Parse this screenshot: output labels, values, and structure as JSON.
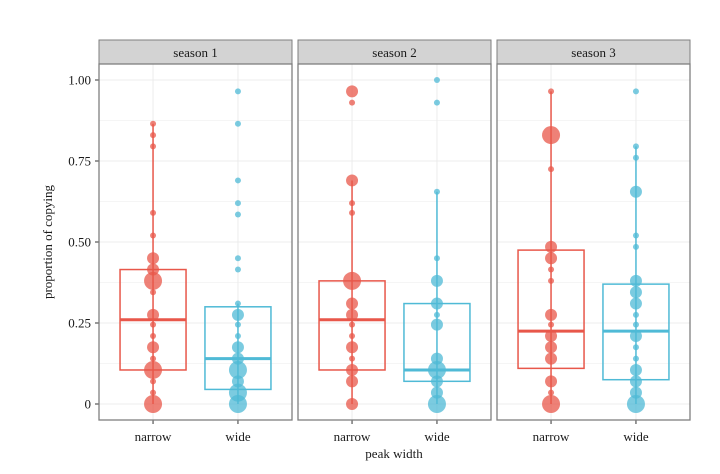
{
  "chart_data": {
    "type": "boxplot",
    "xlabel": "peak width",
    "ylabel": "proportion of copying",
    "ylim": [
      -0.05,
      1.05
    ],
    "yticks": [
      0,
      0.25,
      0.5,
      0.75,
      1.0
    ],
    "ytick_labels": [
      "0",
      "0.25",
      "0.50",
      "0.75",
      "1.00"
    ],
    "categories": [
      "narrow",
      "wide"
    ],
    "colors": {
      "narrow": "#e8574a",
      "wide": "#4fbad6"
    },
    "grid": true,
    "legend": "none",
    "panels": [
      {
        "title": "season 1",
        "groups": [
          {
            "category": "narrow",
            "box": {
              "lower_whisker": 0.0,
              "q1": 0.105,
              "median": 0.26,
              "q3": 0.415,
              "upper_whisker": 0.865
            },
            "points": [
              [
                0.0,
                3
              ],
              [
                0.035,
                1
              ],
              [
                0.07,
                1
              ],
              [
                0.105,
                3
              ],
              [
                0.14,
                1
              ],
              [
                0.175,
                2
              ],
              [
                0.21,
                1
              ],
              [
                0.245,
                1
              ],
              [
                0.275,
                2
              ],
              [
                0.345,
                1
              ],
              [
                0.38,
                3
              ],
              [
                0.415,
                2
              ],
              [
                0.45,
                2
              ],
              [
                0.52,
                1
              ],
              [
                0.59,
                1
              ],
              [
                0.795,
                1
              ],
              [
                0.83,
                1
              ],
              [
                0.865,
                1
              ]
            ]
          },
          {
            "category": "wide",
            "box": {
              "lower_whisker": 0.0,
              "q1": 0.045,
              "median": 0.14,
              "q3": 0.3,
              "upper_whisker": 0.31
            },
            "points": [
              [
                0.0,
                3
              ],
              [
                0.035,
                3
              ],
              [
                0.07,
                2
              ],
              [
                0.105,
                3
              ],
              [
                0.14,
                2
              ],
              [
                0.175,
                2
              ],
              [
                0.21,
                1
              ],
              [
                0.245,
                1
              ],
              [
                0.275,
                2
              ],
              [
                0.31,
                1
              ],
              [
                0.415,
                1
              ],
              [
                0.45,
                1
              ],
              [
                0.585,
                1
              ],
              [
                0.62,
                1
              ],
              [
                0.69,
                1
              ],
              [
                0.865,
                1
              ],
              [
                0.965,
                1
              ]
            ]
          }
        ]
      },
      {
        "title": "season 2",
        "groups": [
          {
            "category": "narrow",
            "box": {
              "lower_whisker": 0.0,
              "q1": 0.105,
              "median": 0.26,
              "q3": 0.38,
              "upper_whisker": 0.69
            },
            "points": [
              [
                0.0,
                2
              ],
              [
                0.07,
                2
              ],
              [
                0.105,
                2
              ],
              [
                0.14,
                1
              ],
              [
                0.175,
                2
              ],
              [
                0.21,
                1
              ],
              [
                0.245,
                1
              ],
              [
                0.275,
                2
              ],
              [
                0.31,
                2
              ],
              [
                0.38,
                3
              ],
              [
                0.59,
                1
              ],
              [
                0.62,
                1
              ],
              [
                0.69,
                2
              ],
              [
                0.93,
                1
              ],
              [
                0.965,
                2
              ]
            ]
          },
          {
            "category": "wide",
            "box": {
              "lower_whisker": 0.0,
              "q1": 0.07,
              "median": 0.105,
              "q3": 0.31,
              "upper_whisker": 0.655
            },
            "points": [
              [
                0.0,
                3
              ],
              [
                0.035,
                2
              ],
              [
                0.07,
                2
              ],
              [
                0.105,
                3
              ],
              [
                0.14,
                2
              ],
              [
                0.245,
                2
              ],
              [
                0.275,
                1
              ],
              [
                0.31,
                2
              ],
              [
                0.38,
                2
              ],
              [
                0.45,
                1
              ],
              [
                0.655,
                1
              ],
              [
                0.93,
                1
              ],
              [
                1.0,
                1
              ]
            ]
          }
        ]
      },
      {
        "title": "season 3",
        "groups": [
          {
            "category": "narrow",
            "box": {
              "lower_whisker": 0.0,
              "q1": 0.11,
              "median": 0.225,
              "q3": 0.475,
              "upper_whisker": 0.965
            },
            "points": [
              [
                0.0,
                3
              ],
              [
                0.035,
                1
              ],
              [
                0.07,
                2
              ],
              [
                0.14,
                2
              ],
              [
                0.175,
                2
              ],
              [
                0.21,
                2
              ],
              [
                0.245,
                1
              ],
              [
                0.275,
                2
              ],
              [
                0.38,
                1
              ],
              [
                0.415,
                1
              ],
              [
                0.45,
                2
              ],
              [
                0.485,
                2
              ],
              [
                0.725,
                1
              ],
              [
                0.83,
                3
              ],
              [
                0.965,
                1
              ]
            ]
          },
          {
            "category": "wide",
            "box": {
              "lower_whisker": 0.0,
              "q1": 0.075,
              "median": 0.225,
              "q3": 0.37,
              "upper_whisker": 0.795
            },
            "points": [
              [
                0.0,
                3
              ],
              [
                0.035,
                2
              ],
              [
                0.07,
                2
              ],
              [
                0.105,
                2
              ],
              [
                0.14,
                1
              ],
              [
                0.175,
                1
              ],
              [
                0.21,
                2
              ],
              [
                0.245,
                1
              ],
              [
                0.275,
                1
              ],
              [
                0.31,
                2
              ],
              [
                0.345,
                2
              ],
              [
                0.38,
                2
              ],
              [
                0.485,
                1
              ],
              [
                0.52,
                1
              ],
              [
                0.655,
                2
              ],
              [
                0.76,
                1
              ],
              [
                0.795,
                1
              ],
              [
                0.965,
                1
              ]
            ]
          }
        ]
      }
    ]
  }
}
